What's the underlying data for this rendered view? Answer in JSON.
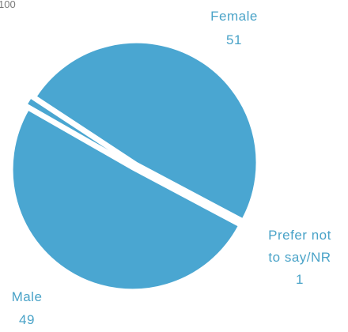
{
  "chart_data": {
    "type": "pie",
    "title": "",
    "total_label": "100",
    "slice_color": "#4aa6d1",
    "background": "#ffffff",
    "slices": [
      {
        "label": "Female",
        "label_lines": [
          "Female",
          "51"
        ],
        "value": 51
      },
      {
        "label": "Prefer not to say/NR",
        "label_lines": [
          "Prefer not",
          "to say/NR",
          "1"
        ],
        "value": 1
      },
      {
        "label": "Male",
        "label_lines": [
          "Male",
          "49"
        ],
        "value": 49
      }
    ]
  }
}
